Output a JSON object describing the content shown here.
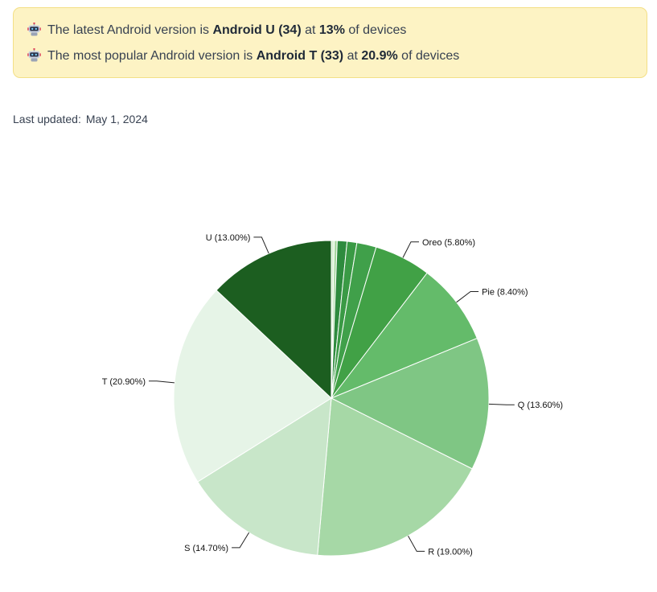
{
  "banner": {
    "line1": {
      "prefix": "The latest Android version is ",
      "version": "Android U (34)",
      "middle": " at ",
      "share": "13%",
      "suffix": " of devices"
    },
    "line2": {
      "prefix": "The most popular Android version is ",
      "version": "Android T (33)",
      "middle": " at ",
      "share": "20.9%",
      "suffix": " of devices"
    },
    "icon": "robot-icon"
  },
  "updated": {
    "label": "Last updated:",
    "date": "May 1, 2024"
  },
  "chart_data": {
    "type": "pie",
    "title": "",
    "unit": "%",
    "slices": [
      {
        "name": "",
        "value": 0.3,
        "color": "#d7efd2",
        "label": ""
      },
      {
        "name": "",
        "value": 0.3,
        "color": "#a6d79f",
        "label": ""
      },
      {
        "name": "",
        "value": 1.0,
        "color": "#2e8b3e",
        "label": ""
      },
      {
        "name": "",
        "value": 1.0,
        "color": "#3a9a45",
        "label": ""
      },
      {
        "name": "",
        "value": 2.0,
        "color": "#40a04a",
        "label": ""
      },
      {
        "name": "Oreo",
        "value": 5.8,
        "color": "#41a146",
        "label": "Oreo (5.80%)"
      },
      {
        "name": "Pie",
        "value": 8.4,
        "color": "#64bb6a",
        "label": "Pie (8.40%)"
      },
      {
        "name": "Q",
        "value": 13.6,
        "color": "#7fc684",
        "label": "Q (13.60%)"
      },
      {
        "name": "R",
        "value": 19.0,
        "color": "#a6d8a6",
        "label": "R (19.00%)"
      },
      {
        "name": "S",
        "value": 14.7,
        "color": "#c8e6c9",
        "label": "S (14.70%)"
      },
      {
        "name": "T",
        "value": 20.9,
        "color": "#e6f4e7",
        "label": "T (20.90%)"
      },
      {
        "name": "U",
        "value": 13.0,
        "color": "#1c5e20",
        "label": "U (13.00%)"
      }
    ]
  }
}
